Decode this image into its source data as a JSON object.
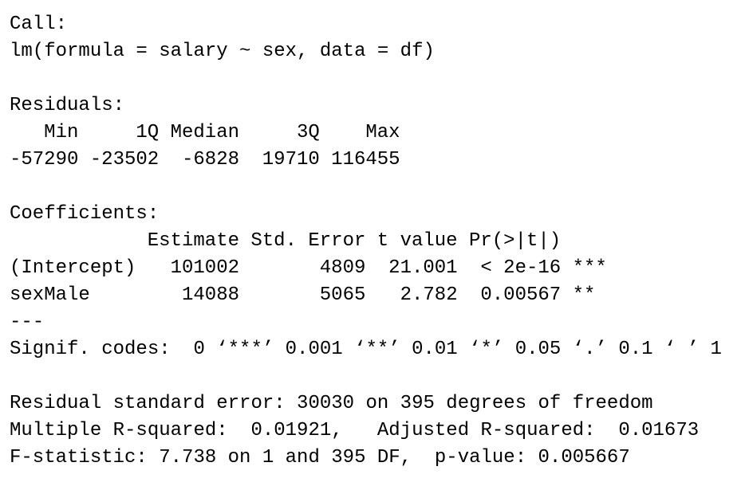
{
  "call": {
    "label": "Call:",
    "formula": "lm(formula = salary ~ sex, data = df)"
  },
  "residuals": {
    "label": "Residuals:",
    "headers": [
      "Min",
      "1Q",
      "Median",
      "3Q",
      "Max"
    ],
    "values": [
      "-57290",
      "-23502",
      "-6828",
      "19710",
      "116455"
    ]
  },
  "coefficients": {
    "label": "Coefficients:",
    "headers": [
      "Estimate",
      "Std. Error",
      "t value",
      "Pr(>|t|)"
    ],
    "rows": [
      {
        "name": "(Intercept)",
        "cells": [
          "101002",
          "4809",
          "21.001",
          "< 2e-16"
        ],
        "stars": "***"
      },
      {
        "name": "sexMale",
        "cells": [
          "14088",
          "5065",
          "2.782",
          "0.00567"
        ],
        "stars": "**"
      }
    ]
  },
  "separator": "---",
  "signif_codes": "Signif. codes:  0 ‘***’ 0.001 ‘**’ 0.01 ‘*’ 0.05 ‘.’ 0.1 ‘ ’ 1",
  "summary": [
    "Residual standard error: 30030 on 395 degrees of freedom",
    "Multiple R-squared:  0.01921,   Adjusted R-squared:  0.01673",
    "F-statistic: 7.738 on 1 and 395 DF,  p-value: 0.005667"
  ]
}
